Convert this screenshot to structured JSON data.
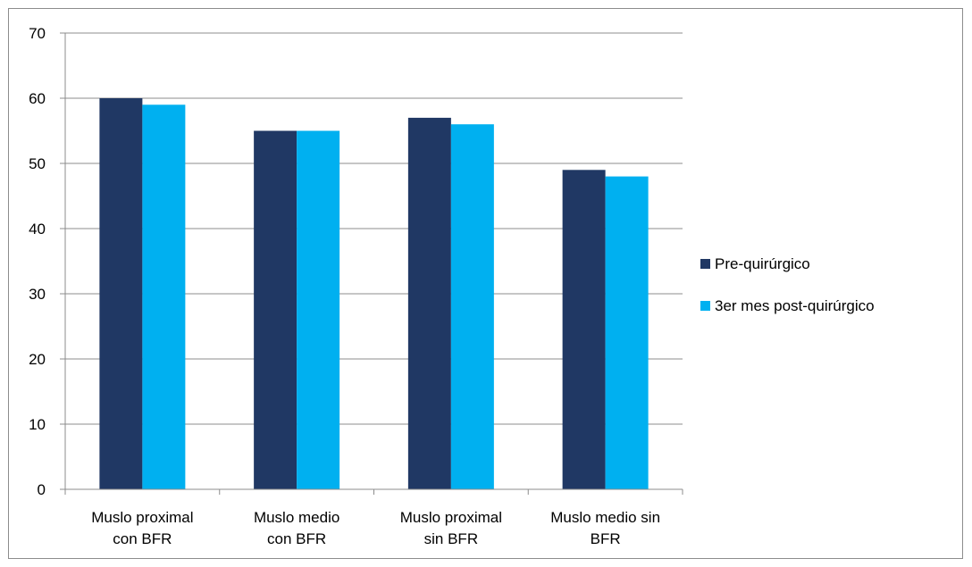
{
  "chart_data": {
    "type": "bar",
    "title": "",
    "xlabel": "",
    "ylabel": "",
    "categories": [
      [
        "Muslo proximal",
        "con BFR"
      ],
      [
        "Muslo medio",
        "con BFR"
      ],
      [
        "Muslo proximal",
        "sin BFR"
      ],
      [
        "Muslo medio sin",
        "BFR"
      ]
    ],
    "series": [
      {
        "name": "Pre-quirúrgico",
        "color": "#203864",
        "values": [
          60,
          55,
          57,
          49
        ]
      },
      {
        "name": "3er mes post-quirúrgico",
        "color": "#00b0f0",
        "values": [
          59,
          55,
          56,
          48
        ]
      }
    ],
    "ylim": [
      0,
      70
    ],
    "yticks": [
      0,
      10,
      20,
      30,
      40,
      50,
      60,
      70
    ],
    "grid": true,
    "legend": "right"
  }
}
